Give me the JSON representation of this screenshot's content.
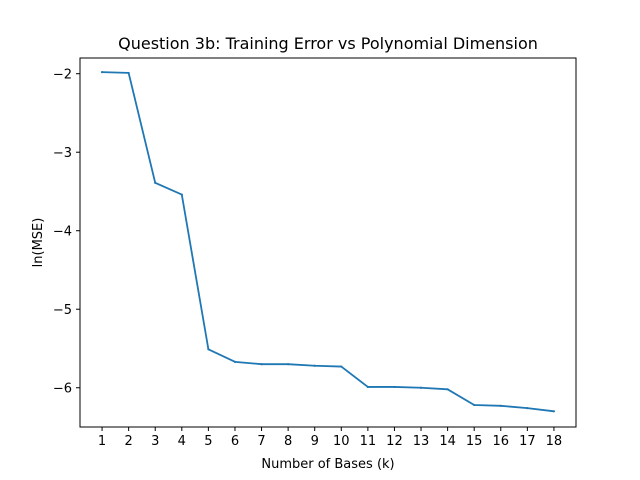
{
  "chart_data": {
    "type": "line",
    "title": "Question 3b: Training Error vs Polynomial Dimension",
    "xlabel": "Number of Bases (k)",
    "ylabel": "ln(MSE)",
    "x": [
      1,
      2,
      3,
      4,
      5,
      6,
      7,
      8,
      9,
      10,
      11,
      12,
      13,
      14,
      15,
      16,
      17,
      18
    ],
    "series": [
      {
        "color": "#1f77b4",
        "values": [
          -1.98,
          -1.99,
          -3.39,
          -3.54,
          -5.51,
          -5.67,
          -5.7,
          -5.7,
          -5.72,
          -5.73,
          -5.99,
          -5.99,
          -6.0,
          -6.02,
          -6.22,
          -6.23,
          -6.26,
          -6.3
        ]
      }
    ],
    "xlim": [
      0.17,
      18.83
    ],
    "ylim": [
      -6.5,
      -1.8
    ],
    "xticks": [
      1,
      2,
      3,
      4,
      5,
      6,
      7,
      8,
      9,
      10,
      11,
      12,
      13,
      14,
      15,
      16,
      17,
      18
    ],
    "yticks": [
      -6,
      -5,
      -4,
      -3,
      -2
    ],
    "ytick_labels": [
      "−6",
      "−5",
      "−4",
      "−3",
      "−2"
    ],
    "grid": false,
    "legend": false
  }
}
